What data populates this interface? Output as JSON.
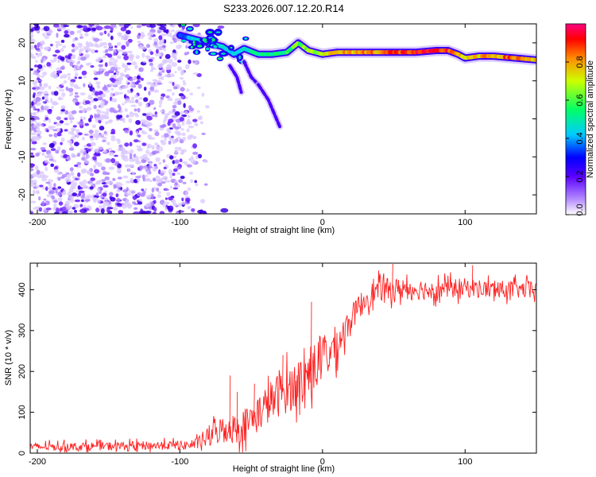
{
  "title": "S233.2026.007.12.20.R14",
  "chart_data": [
    {
      "type": "heatmap",
      "name": "spectrogram",
      "xlabel": "Height of straight line (km)",
      "ylabel": "Frequency (Hz)",
      "xlim": [
        -205,
        150
      ],
      "ylim": [
        -25,
        25
      ],
      "xticks": [
        -200,
        -100,
        0,
        100
      ],
      "yticks": [
        20,
        10,
        0,
        -10,
        -20
      ],
      "colorbar": {
        "label": "Normalized spectral amplitude",
        "range": [
          0,
          1
        ],
        "ticks": [
          0.0,
          0.2,
          0.4,
          0.6,
          0.8
        ]
      },
      "noise_region_x": [
        -205,
        -85
      ],
      "ridge": [
        {
          "x": -100,
          "f": 22,
          "amp": 0.35
        },
        {
          "x": -90,
          "f": 21,
          "amp": 0.45
        },
        {
          "x": -80,
          "f": 20,
          "amp": 0.5
        },
        {
          "x": -70,
          "f": 19,
          "amp": 0.5
        },
        {
          "x": -62,
          "f": 17,
          "amp": 0.45
        },
        {
          "x": -55,
          "f": 18.5,
          "amp": 0.5
        },
        {
          "x": -45,
          "f": 17,
          "amp": 0.55
        },
        {
          "x": -35,
          "f": 17,
          "amp": 0.55
        },
        {
          "x": -25,
          "f": 17.5,
          "amp": 0.6
        },
        {
          "x": -17,
          "f": 20,
          "amp": 0.65
        },
        {
          "x": -10,
          "f": 18,
          "amp": 0.7
        },
        {
          "x": 0,
          "f": 17,
          "amp": 0.75
        },
        {
          "x": 10,
          "f": 17.5,
          "amp": 0.8
        },
        {
          "x": 25,
          "f": 17.5,
          "amp": 0.85
        },
        {
          "x": 45,
          "f": 17.5,
          "amp": 0.9
        },
        {
          "x": 65,
          "f": 17.5,
          "amp": 0.95
        },
        {
          "x": 80,
          "f": 18,
          "amp": 0.92
        },
        {
          "x": 88,
          "f": 18,
          "amp": 0.95
        },
        {
          "x": 95,
          "f": 17,
          "amp": 0.85
        },
        {
          "x": 100,
          "f": 16,
          "amp": 0.75
        },
        {
          "x": 110,
          "f": 16.5,
          "amp": 0.8
        },
        {
          "x": 120,
          "f": 16.5,
          "amp": 0.85
        },
        {
          "x": 135,
          "f": 16,
          "amp": 0.9
        },
        {
          "x": 150,
          "f": 15.5,
          "amp": 0.8
        }
      ],
      "branches": [
        {
          "x": [
            -65,
            -60,
            -57
          ],
          "f": [
            14,
            11,
            7
          ]
        },
        {
          "x": [
            -55,
            -50,
            -45
          ],
          "f": [
            15,
            11,
            9
          ]
        },
        {
          "x": [
            -45,
            -38,
            -30
          ],
          "f": [
            9,
            5,
            -2
          ]
        }
      ]
    },
    {
      "type": "line",
      "name": "snr",
      "xlabel": "Height of straight line (km)",
      "ylabel": "SNR (10 * v/v)",
      "xlim": [
        -205,
        150
      ],
      "ylim": [
        0,
        465
      ],
      "xticks": [
        -200,
        -100,
        0,
        100
      ],
      "yticks": [
        0,
        100,
        200,
        300,
        400
      ],
      "color": "#ff2020",
      "trend": {
        "x": [
          -205,
          -90,
          -80,
          -70,
          -60,
          -50,
          -40,
          -30,
          -20,
          -10,
          0,
          10,
          20,
          30,
          40,
          60,
          80,
          100,
          120,
          150
        ],
        "y": [
          15,
          20,
          40,
          60,
          60,
          80,
          115,
          145,
          165,
          195,
          230,
          265,
          330,
          380,
          400,
          402,
          400,
          405,
          400,
          400
        ]
      },
      "noise": {
        "x": [
          -205,
          -90,
          -80,
          -60,
          -40,
          -20,
          0,
          20,
          40,
          80,
          150
        ],
        "amp": [
          14,
          16,
          40,
          55,
          70,
          85,
          90,
          45,
          40,
          35,
          30
        ]
      },
      "spikes": [
        {
          "x": -65,
          "y": 190
        },
        {
          "x": -60,
          "y": 150
        },
        {
          "x": -48,
          "y": 170
        },
        {
          "x": -28,
          "y": 240
        },
        {
          "x": -8,
          "y": 370
        },
        {
          "x": 49,
          "y": 463
        },
        {
          "x": 105,
          "y": 460
        }
      ]
    }
  ]
}
